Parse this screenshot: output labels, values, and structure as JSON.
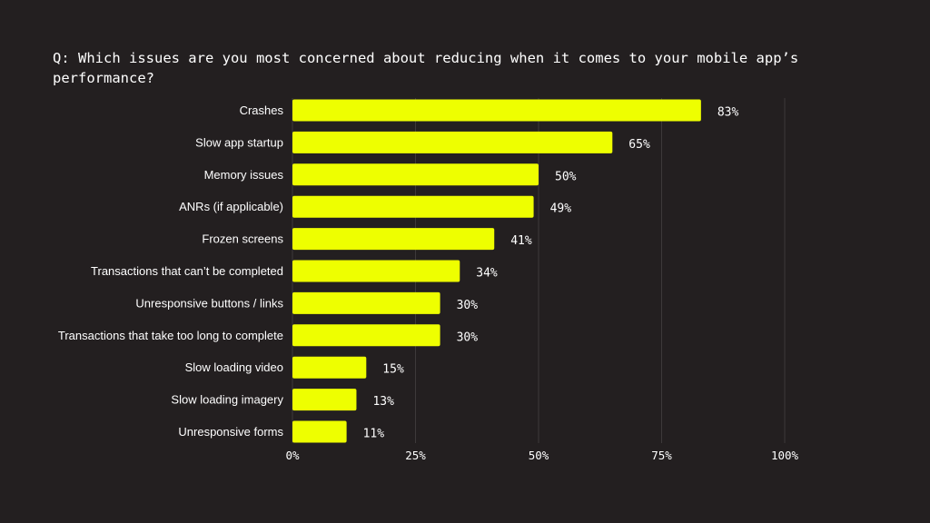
{
  "chart_data": {
    "type": "bar",
    "orientation": "horizontal",
    "title_lines": [
      "Q: Which issues are you most concerned about reducing when it comes to your mobile app’s",
      "performance?"
    ],
    "categories": [
      "Crashes",
      "Slow app startup",
      "Memory issues",
      "ANRs (if applicable)",
      "Frozen screens",
      "Transactions that can’t be completed",
      "Unresponsive buttons / links",
      "Transactions that take too long to complete",
      "Slow loading video",
      "Slow loading imagery",
      "Unresponsive forms"
    ],
    "values": [
      83,
      65,
      50,
      49,
      41,
      34,
      30,
      30,
      15,
      13,
      11
    ],
    "value_labels": [
      "83%",
      "65%",
      "50%",
      "49%",
      "41%",
      "34%",
      "30%",
      "30%",
      "15%",
      "13%",
      "11%"
    ],
    "xlim": [
      0,
      100
    ],
    "x_ticks": [
      0,
      25,
      50,
      75,
      100
    ],
    "x_tick_labels": [
      "0%",
      "25%",
      "50%",
      "75%",
      "100%"
    ],
    "grid": "vertical",
    "colors": {
      "background": "#231f20",
      "bar": "#eeff00",
      "text": "#ffffff",
      "grid": "#3d393a"
    }
  }
}
